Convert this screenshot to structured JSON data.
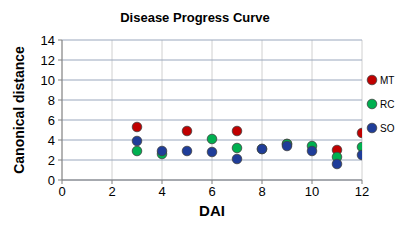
{
  "chart_data": {
    "type": "scatter",
    "title": "Disease Progress Curve",
    "x_label": "DAI",
    "y_label": "Canonical distance",
    "xlim": [
      0,
      12
    ],
    "xticks": [
      0,
      2,
      4,
      6,
      8,
      10,
      12
    ],
    "ylim": [
      0,
      14
    ],
    "yticks": [
      0,
      2,
      4,
      6,
      8,
      10,
      12,
      14
    ],
    "grid": true,
    "legend": "right",
    "marker": "circle",
    "series": [
      {
        "name": "MT",
        "color": "#c00000",
        "x": [
          3,
          5,
          7,
          9,
          11,
          12
        ],
        "values": [
          5.3,
          4.9,
          4.9,
          3.6,
          3.0,
          4.7
        ]
      },
      {
        "name": "RC",
        "color": "#00b050",
        "x": [
          3,
          4,
          6,
          7,
          8,
          9,
          10,
          11,
          12
        ],
        "values": [
          2.9,
          2.6,
          4.1,
          3.2,
          3.1,
          3.6,
          3.4,
          2.3,
          3.3
        ]
      },
      {
        "name": "SO",
        "color": "#1f3d99",
        "x": [
          3,
          4,
          5,
          6,
          7,
          8,
          9,
          10,
          11,
          12
        ],
        "values": [
          3.9,
          2.9,
          2.9,
          2.8,
          2.1,
          3.1,
          3.4,
          2.9,
          1.6,
          2.5
        ]
      }
    ]
  }
}
